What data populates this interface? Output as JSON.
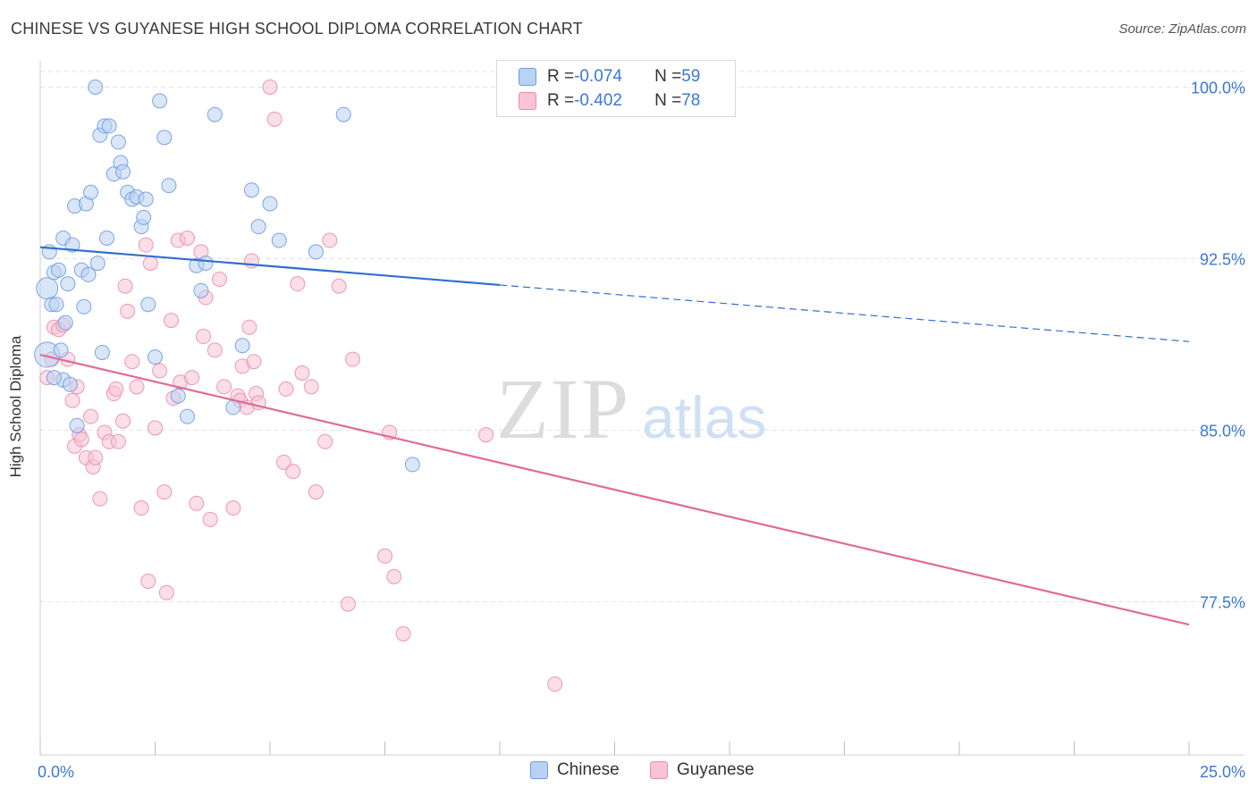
{
  "header": {
    "title": "CHINESE VS GUYANESE HIGH SCHOOL DIPLOMA CORRELATION CHART",
    "source": "Source: ZipAtlas.com"
  },
  "watermark": {
    "zip": "ZIP",
    "atlas": "atlas"
  },
  "legend": {
    "rows": [
      {
        "r_label": "R = ",
        "r_value": "-0.074",
        "n_label": "N = ",
        "n_value": "59"
      },
      {
        "r_label": "R = ",
        "r_value": "-0.402",
        "n_label": "N = ",
        "n_value": "78"
      }
    ]
  },
  "bottom_legend": {
    "items": [
      {
        "label": "Chinese"
      },
      {
        "label": "Guyanese"
      }
    ]
  },
  "colors": {
    "chinese_fill": "#b9d1f3",
    "chinese_stroke": "#6f9be0",
    "chinese_line": "#2f6fce",
    "guyanese_fill": "#f8c3d4",
    "guyanese_stroke": "#e88fac",
    "guyanese_line": "#e06a98",
    "tick_label": "#3a78d8",
    "grid": "#e3e3e3"
  },
  "chart_data": {
    "type": "scatter",
    "title": "CHINESE VS GUYANESE HIGH SCHOOL DIPLOMA CORRELATION CHART",
    "xlabel": "",
    "ylabel": "High School Diploma",
    "xlim": [
      0,
      25
    ],
    "ylim": [
      71,
      101
    ],
    "x_tick_labels": [
      "0.0%",
      "25.0%"
    ],
    "y_ticks": [
      77.5,
      85.0,
      92.5,
      100.0
    ],
    "y_tick_labels": [
      "77.5%",
      "85.0%",
      "92.5%",
      "100.0%"
    ],
    "grid": true,
    "legend_position": "top-center",
    "series": [
      {
        "name": "Chinese",
        "x": [
          0.15,
          0.2,
          0.3,
          0.4,
          0.5,
          0.55,
          0.6,
          0.7,
          0.75,
          0.8,
          0.9,
          0.95,
          1.0,
          1.05,
          1.1,
          1.2,
          1.25,
          1.3,
          1.35,
          1.4,
          1.45,
          1.5,
          1.6,
          1.7,
          1.75,
          1.8,
          1.9,
          2.0,
          2.1,
          2.2,
          2.25,
          2.3,
          2.35,
          2.5,
          2.6,
          2.7,
          2.8,
          3.0,
          3.2,
          3.4,
          3.5,
          3.6,
          3.8,
          4.2,
          4.4,
          4.6,
          4.75,
          5.0,
          5.2,
          6.0,
          6.6,
          8.1,
          0.15,
          0.25,
          0.35,
          0.5,
          0.65,
          0.3,
          0.45
        ],
        "y": [
          91.2,
          92.8,
          91.9,
          92.0,
          93.4,
          89.7,
          91.4,
          93.1,
          94.8,
          85.2,
          92.0,
          90.4,
          94.9,
          91.8,
          95.4,
          100.0,
          92.3,
          97.9,
          88.4,
          98.3,
          93.4,
          98.3,
          96.2,
          97.6,
          96.7,
          96.3,
          95.4,
          95.1,
          95.2,
          93.9,
          94.3,
          95.1,
          90.5,
          88.2,
          99.4,
          97.8,
          95.7,
          86.5,
          85.6,
          92.2,
          91.1,
          92.3,
          98.8,
          86.0,
          88.7,
          95.5,
          93.9,
          94.9,
          93.3,
          92.8,
          98.8,
          83.5,
          88.3,
          90.5,
          90.5,
          87.2,
          87.0,
          87.3,
          88.5
        ],
        "sizes": [
          22,
          14,
          14,
          14,
          14,
          14,
          14,
          14,
          14,
          14,
          14,
          14,
          14,
          14,
          14,
          14,
          14,
          14,
          14,
          14,
          14,
          14,
          14,
          14,
          14,
          14,
          14,
          14,
          14,
          14,
          14,
          14,
          14,
          14,
          14,
          14,
          14,
          14,
          14,
          14,
          14,
          14,
          14,
          14,
          14,
          14,
          14,
          14,
          14,
          14,
          14,
          14,
          26,
          14,
          14,
          14,
          14,
          14,
          14
        ]
      },
      {
        "name": "Guyanese",
        "x": [
          0.15,
          0.25,
          0.3,
          0.4,
          0.5,
          0.6,
          0.7,
          0.75,
          0.8,
          0.85,
          0.9,
          1.0,
          1.1,
          1.15,
          1.2,
          1.3,
          1.4,
          1.5,
          1.6,
          1.65,
          1.7,
          1.8,
          1.85,
          1.9,
          2.0,
          2.1,
          2.2,
          2.3,
          2.35,
          2.4,
          2.5,
          2.6,
          2.7,
          2.75,
          2.85,
          2.9,
          3.0,
          3.05,
          3.2,
          3.3,
          3.4,
          3.5,
          3.55,
          3.6,
          3.7,
          3.8,
          3.9,
          4.0,
          4.2,
          4.3,
          4.35,
          4.4,
          4.5,
          4.55,
          4.6,
          4.65,
          4.7,
          4.75,
          5.0,
          5.1,
          5.3,
          5.35,
          5.5,
          5.6,
          5.7,
          5.9,
          6.0,
          6.2,
          6.3,
          6.5,
          6.7,
          6.8,
          7.5,
          7.6,
          7.7,
          7.9,
          9.7,
          11.2
        ],
        "y": [
          87.3,
          88.1,
          89.5,
          89.4,
          89.6,
          88.1,
          86.3,
          84.3,
          86.9,
          84.8,
          84.6,
          83.8,
          85.6,
          83.4,
          83.8,
          82.0,
          84.9,
          84.5,
          86.6,
          86.8,
          84.5,
          85.4,
          91.3,
          90.2,
          88.0,
          86.9,
          81.6,
          93.1,
          78.4,
          92.3,
          85.1,
          87.6,
          82.3,
          77.9,
          89.8,
          86.4,
          93.3,
          87.1,
          93.4,
          87.3,
          81.8,
          92.8,
          89.1,
          90.8,
          81.1,
          88.5,
          91.6,
          86.9,
          81.6,
          86.5,
          86.3,
          87.8,
          86.0,
          89.5,
          92.4,
          88.0,
          86.6,
          86.2,
          100.0,
          98.6,
          83.6,
          86.8,
          83.2,
          91.4,
          87.5,
          86.9,
          82.3,
          84.5,
          93.3,
          91.3,
          77.4,
          88.1,
          79.5,
          84.9,
          78.6,
          76.1,
          84.8,
          73.9
        ],
        "sizes": [
          14,
          14,
          14,
          14,
          14,
          14,
          14,
          14,
          14,
          14,
          14,
          14,
          14,
          14,
          14,
          14,
          14,
          14,
          14,
          14,
          14,
          14,
          14,
          14,
          14,
          14,
          14,
          14,
          14,
          14,
          14,
          14,
          14,
          14,
          14,
          14,
          14,
          14,
          14,
          14,
          14,
          14,
          14,
          14,
          14,
          14,
          14,
          14,
          14,
          14,
          14,
          14,
          14,
          14,
          14,
          14,
          14,
          14,
          14,
          14,
          14,
          14,
          14,
          14,
          14,
          14,
          14,
          14,
          14,
          14,
          14,
          14,
          14,
          14,
          14,
          14,
          14,
          14
        ]
      }
    ],
    "trendlines": [
      {
        "name": "Chinese",
        "solid": [
          0,
          10
        ],
        "dashed": [
          10,
          25
        ],
        "intercept": 93.0,
        "slope": -0.165
      },
      {
        "name": "Guyanese",
        "solid": [
          0,
          25
        ],
        "intercept": 88.3,
        "slope": -0.472
      }
    ]
  }
}
